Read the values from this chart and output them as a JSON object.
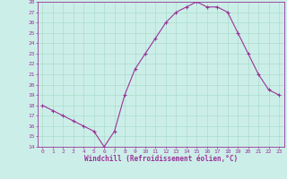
{
  "x": [
    0,
    1,
    2,
    3,
    4,
    5,
    6,
    7,
    8,
    9,
    10,
    11,
    12,
    13,
    14,
    15,
    16,
    17,
    18,
    19,
    20,
    21,
    22,
    23
  ],
  "y": [
    18,
    17.5,
    17,
    16.5,
    16,
    15.5,
    14,
    15.5,
    19,
    21.5,
    23,
    24.5,
    26,
    27,
    27.5,
    28,
    27.5,
    27.5,
    27,
    25,
    23,
    21,
    19.5,
    19
  ],
  "line_color": "#993399",
  "marker": "+",
  "marker_size": 3,
  "bg_color": "#cceee8",
  "grid_color": "#aaddcc",
  "xlabel": "Windchill (Refroidissement éolien,°C)",
  "xlabel_color": "#993399",
  "tick_color": "#993399",
  "ylim": [
    14,
    28
  ],
  "yticks": [
    14,
    15,
    16,
    17,
    18,
    19,
    20,
    21,
    22,
    23,
    24,
    25,
    26,
    27,
    28
  ],
  "xticks": [
    0,
    1,
    2,
    3,
    4,
    5,
    6,
    7,
    8,
    9,
    10,
    11,
    12,
    13,
    14,
    15,
    16,
    17,
    18,
    19,
    20,
    21,
    22,
    23
  ]
}
